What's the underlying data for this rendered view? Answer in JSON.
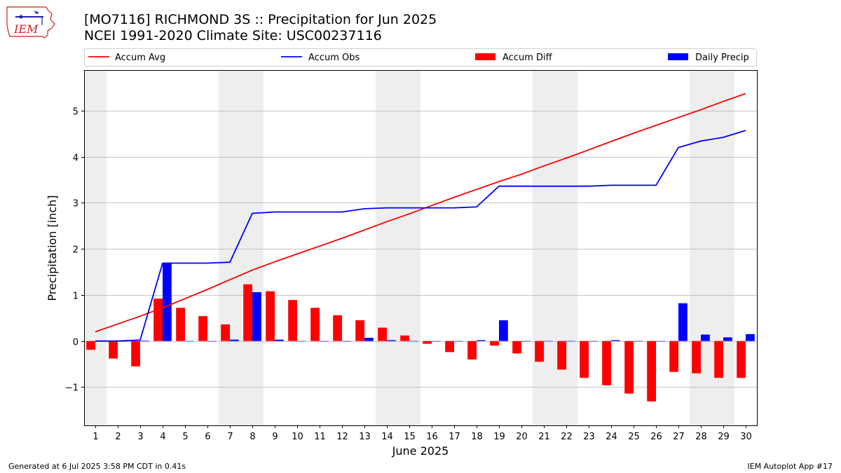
{
  "header": {
    "title_line1": "[MO7116] RICHMOND 3S :: Precipitation for Jun 2025",
    "title_line2": "NCEI 1991-2020 Climate Site: USC00237116",
    "logo_text": "IEM"
  },
  "footer": {
    "left": "Generated at 6 Jul 2025 3:58 PM CDT in 0.41s",
    "right": "IEM Autoplot App #17"
  },
  "colors": {
    "accum_avg": "#ff0000",
    "accum_obs": "#0000ff",
    "accum_diff": "#ff0000",
    "daily_precip": "#0000ff",
    "weekend_shade": "#eeeeee",
    "grid": "#b0b0b0"
  },
  "chart_data": {
    "type": "bar",
    "title": "[MO7116] RICHMOND 3S :: Precipitation for Jun 2025",
    "subtitle": "NCEI 1991-2020 Climate Site: USC00237116",
    "xlabel": "June 2025",
    "ylabel": "Precipitation [inch]",
    "ylim": [
      -1.83,
      5.88
    ],
    "xlim": [
      0.5,
      30.5
    ],
    "yticks": [
      -1,
      0,
      1,
      2,
      3,
      4,
      5
    ],
    "ytick_labels": [
      "−1",
      "0",
      "1",
      "2",
      "3",
      "4",
      "5"
    ],
    "grid": "horizontal",
    "legend_placement": "top",
    "categories": [
      "1",
      "2",
      "3",
      "4",
      "5",
      "6",
      "7",
      "8",
      "9",
      "10",
      "11",
      "12",
      "13",
      "14",
      "15",
      "16",
      "17",
      "18",
      "19",
      "20",
      "21",
      "22",
      "23",
      "24",
      "25",
      "26",
      "27",
      "28",
      "29",
      "30"
    ],
    "shaded_days": [
      [
        0.5,
        1.5
      ],
      [
        6.5,
        8.5
      ],
      [
        13.5,
        15.5
      ],
      [
        20.5,
        22.5
      ],
      [
        27.5,
        29.5
      ]
    ],
    "series": [
      {
        "name": "Accum Avg",
        "type": "line",
        "values": [
          0.2,
          0.37,
          0.54,
          0.72,
          0.92,
          1.12,
          1.33,
          1.54,
          1.72,
          1.89,
          2.06,
          2.23,
          2.41,
          2.59,
          2.76,
          2.94,
          3.12,
          3.29,
          3.46,
          3.62,
          3.8,
          3.97,
          4.15,
          4.33,
          4.51,
          4.68,
          4.85,
          5.02,
          5.2,
          5.37
        ]
      },
      {
        "name": "Accum Obs",
        "type": "line",
        "values": [
          0.0,
          0.0,
          0.02,
          1.69,
          1.69,
          1.69,
          1.71,
          2.77,
          2.8,
          2.8,
          2.8,
          2.8,
          2.87,
          2.89,
          2.89,
          2.89,
          2.89,
          2.91,
          3.36,
          3.36,
          3.36,
          3.36,
          3.36,
          3.38,
          3.38,
          3.38,
          4.2,
          4.34,
          4.42,
          4.57
        ]
      },
      {
        "name": "Accum Diff",
        "type": "bar",
        "values": [
          -0.19,
          -0.38,
          -0.55,
          0.92,
          0.72,
          0.54,
          0.36,
          1.23,
          1.08,
          0.89,
          0.72,
          0.56,
          0.45,
          0.29,
          0.12,
          -0.06,
          -0.24,
          -0.4,
          -0.1,
          -0.27,
          -0.45,
          -0.62,
          -0.8,
          -0.96,
          -1.14,
          -1.31,
          -0.67,
          -0.7,
          -0.8,
          -0.8
        ]
      },
      {
        "name": "Daily Precip",
        "type": "bar",
        "values": [
          0.01,
          0.0,
          0.01,
          1.69,
          0.0,
          0.0,
          0.03,
          1.06,
          0.03,
          0.0,
          0.0,
          0.0,
          0.07,
          0.02,
          0.0,
          0.0,
          0.0,
          0.02,
          0.45,
          0.0,
          0.0,
          0.0,
          0.0,
          0.02,
          0.0,
          0.0,
          0.82,
          0.14,
          0.08,
          0.15
        ]
      }
    ]
  }
}
